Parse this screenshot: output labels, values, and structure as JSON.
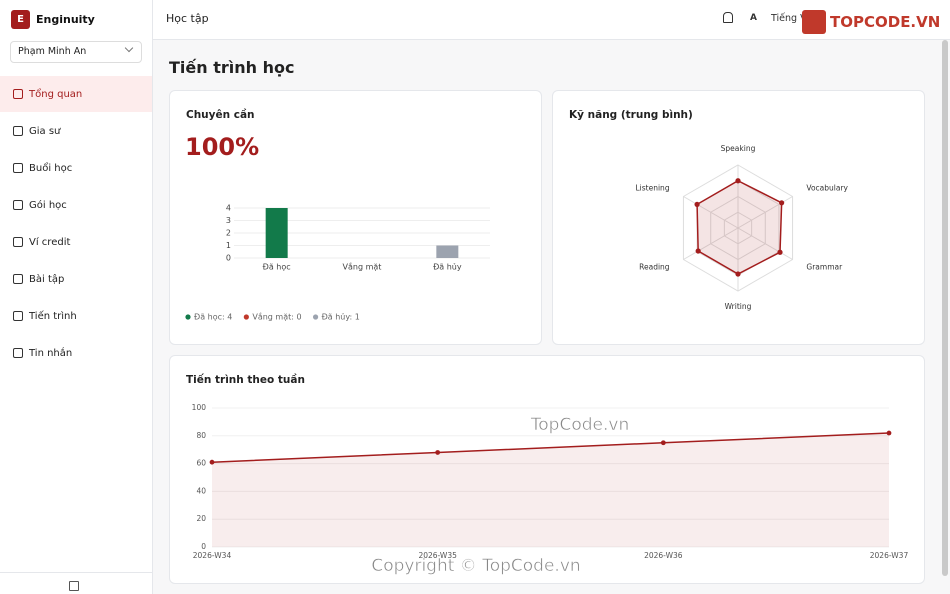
{
  "sidebar": {
    "logo": "E",
    "brand": "Enginuity",
    "user": "Phạm Minh An",
    "nav": [
      "Tổng quan",
      "Gia sư",
      "Buổi học",
      "Gói học",
      "Ví credit",
      "Bài tập",
      "Tiến trình",
      "Tin nhắn"
    ],
    "active": 0
  },
  "header": {
    "title": "Học tập",
    "language": "Tiếng Việt"
  },
  "page_title": "Tiến trình học",
  "watermarks": [
    "TOPCODE.VN",
    "TopCode.vn",
    "Copyright © TopCode.vn"
  ],
  "chart_data": [
    {
      "type": "bar",
      "title": "Chuyên cần",
      "headline": "100%",
      "categories": [
        "Đã học",
        "Vắng mặt",
        "Đã hủy"
      ],
      "values": [
        4,
        0,
        1
      ],
      "colors": [
        "#127a4a",
        "#c0392b",
        "#9ca3af"
      ],
      "ylim": [
        0,
        4
      ],
      "yticks": [
        0,
        1,
        2,
        3,
        4
      ],
      "grid": true,
      "legend": [
        "Đã học: 4",
        "Vắng mặt: 0",
        "Đã hủy: 1"
      ]
    },
    {
      "type": "radar",
      "title": "Kỹ năng (trung bình)",
      "categories": [
        "Speaking",
        "Vocabulary",
        "Grammar",
        "Writing",
        "Reading",
        "Listening"
      ],
      "values": [
        75,
        80,
        77,
        73,
        73,
        75
      ],
      "rlim": [
        0,
        100
      ],
      "color": "#a31d1d"
    },
    {
      "type": "line",
      "title": "Tiến trình theo tuần",
      "categories": [
        "2026-W34",
        "2026-W35",
        "2026-W36",
        "2026-W37"
      ],
      "values": [
        61,
        68,
        75,
        82
      ],
      "ylim": [
        0,
        100
      ],
      "yticks": [
        0,
        20,
        40,
        60,
        80,
        100
      ],
      "grid": true,
      "color": "#a31d1d",
      "area": true
    }
  ]
}
